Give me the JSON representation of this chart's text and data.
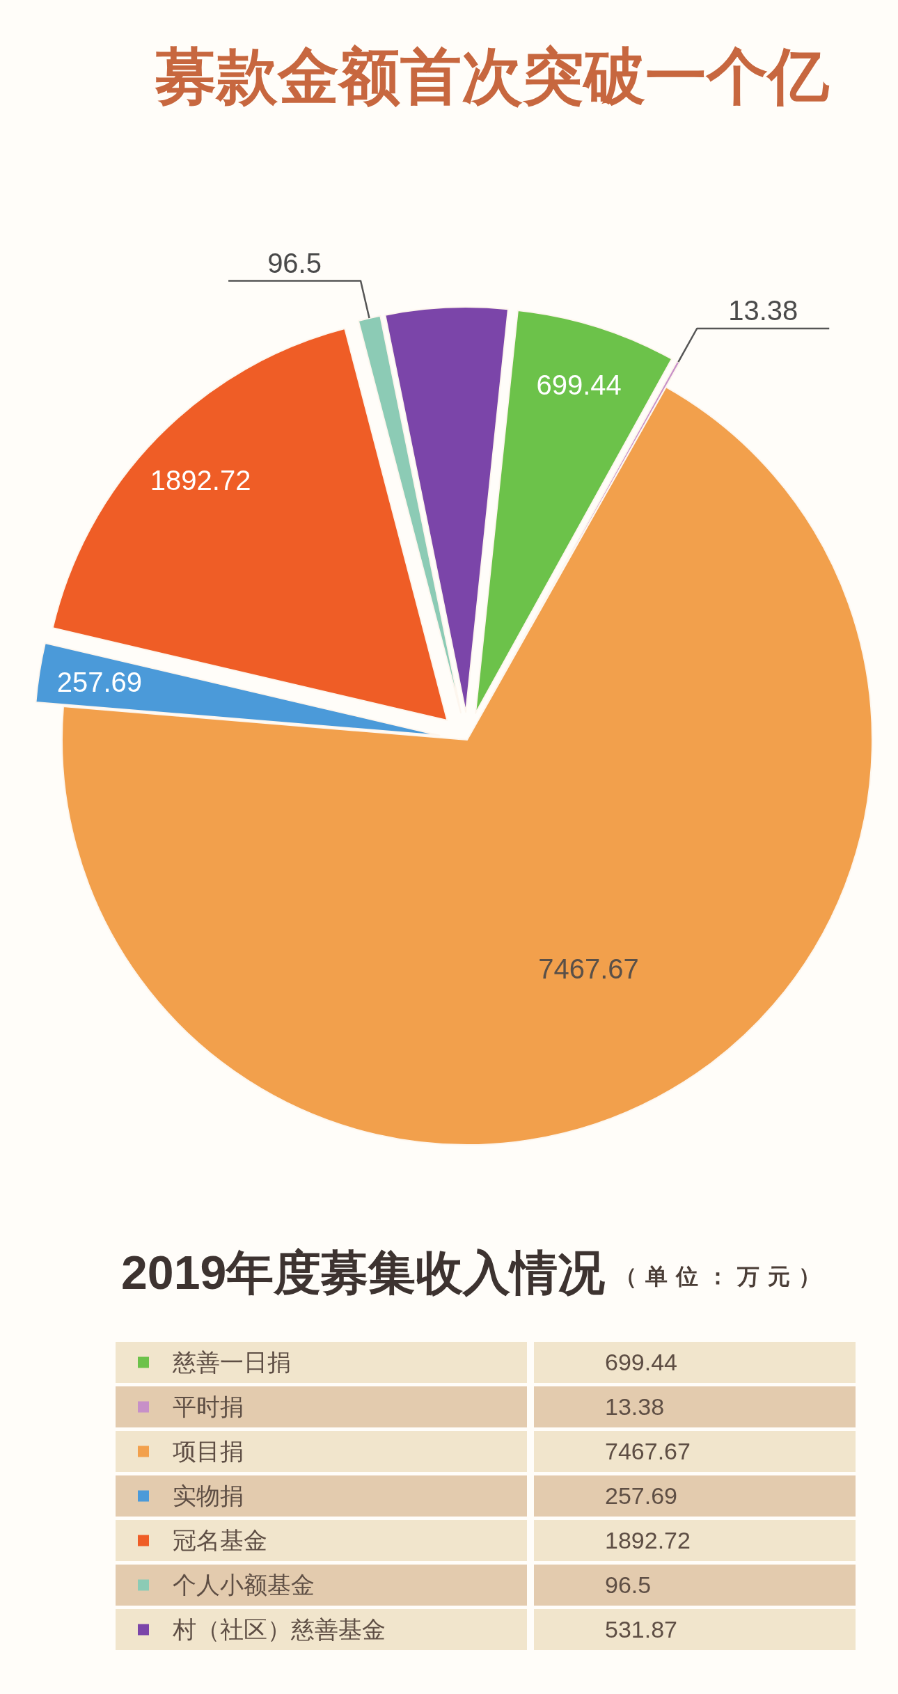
{
  "chart_data": [
    {
      "type": "pie",
      "title": "募款金额首次突破一个亿",
      "categories": [
        "慈善一日捐",
        "平时捐",
        "项目捐",
        "实物捐",
        "冠名基金",
        "个人小额基金",
        "村（社区）慈善基金"
      ],
      "values": [
        699.44,
        13.38,
        7467.67,
        257.69,
        1892.72,
        96.5,
        531.87
      ],
      "colors": [
        "#6cc24a",
        "#c790c8",
        "#f2a04c",
        "#4b9ad9",
        "#ef5d26",
        "#8ccbb5",
        "#7b45a9"
      ],
      "value_labels": [
        "699.44",
        "13.38",
        "7467.67",
        "257.69",
        "1892.72",
        "96.5",
        null
      ],
      "legend": "bottom"
    },
    {
      "type": "other",
      "title": "2019年度募集收入情况",
      "annotations": [
        "（单位：万元）"
      ],
      "values": [
        699.44,
        13.38,
        7467.67,
        257.69,
        1892.72,
        96.5,
        531.87
      ],
      "data_labels": true
    }
  ]
}
